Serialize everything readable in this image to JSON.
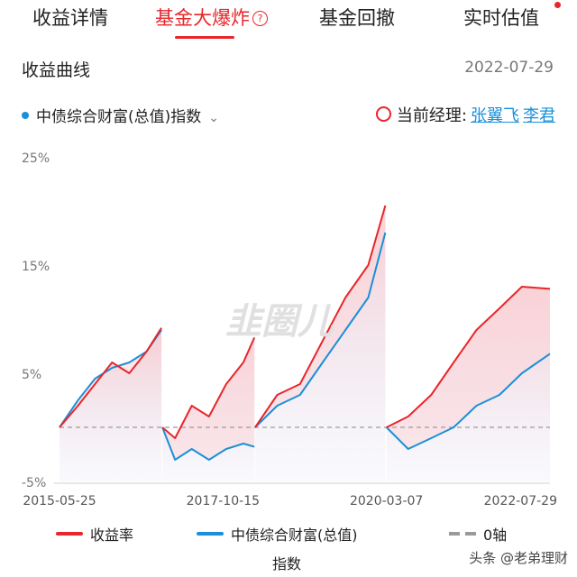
{
  "tabs": [
    {
      "label": "收益详情"
    },
    {
      "label": "基金大爆炸"
    },
    {
      "label": "基金回撤"
    },
    {
      "label": "实时估值"
    }
  ],
  "help_glyph": "?",
  "section_title": "收益曲线",
  "date": "2022-07-29",
  "index_selector": {
    "label": "中债综合财富(总值)指数",
    "icon": "chevron-down-icon"
  },
  "manager": {
    "label": "当前经理:",
    "names": [
      "张翼飞",
      "李君"
    ]
  },
  "watermark_chart": "韭圈儿",
  "legend": {
    "series1": "收益率",
    "series2": "中债综合财富(总值)",
    "series2_suffix": "指数",
    "zero": "0轴"
  },
  "footer_watermark": "头条 @老弟理财",
  "colors": {
    "return": "#e8262b",
    "index": "#1a90d8",
    "zero": "#9a9a9a",
    "accent": "#e8262b"
  },
  "chart_data": {
    "type": "line",
    "y_ticks": [
      "25%",
      "15%",
      "5%",
      "-5%"
    ],
    "ylim": [
      -5,
      25
    ],
    "x_ticks": [
      "2015-05-25",
      "2017-10-15",
      "2020-03-07",
      "2022-07-29"
    ],
    "series": [
      {
        "name": "收益率",
        "segments": [
          {
            "x": [
              "2015-05-25",
              "2015-09-01",
              "2015-12-01",
              "2016-03-01",
              "2016-06-01",
              "2016-09-01",
              "2016-11-20"
            ],
            "y": [
              0,
              2,
              4,
              6,
              5,
              7,
              9.2
            ]
          },
          {
            "x": [
              "2016-11-25",
              "2017-02-01",
              "2017-05-01",
              "2017-08-01",
              "2017-11-01",
              "2018-02-01",
              "2018-04-01"
            ],
            "y": [
              0,
              -1,
              2,
              1,
              4,
              6,
              8.3
            ]
          },
          {
            "x": [
              "2018-04-05",
              "2018-08-01",
              "2018-12-01",
              "2019-04-01",
              "2019-08-01",
              "2019-12-01",
              "2020-03-01"
            ],
            "y": [
              0,
              3,
              4,
              8,
              12,
              15,
              20.5
            ]
          },
          {
            "x": [
              "2020-03-07",
              "2020-07-01",
              "2020-11-01",
              "2021-03-01",
              "2021-07-01",
              "2021-11-01",
              "2022-03-01",
              "2022-07-29"
            ],
            "y": [
              0,
              1,
              3,
              6,
              9,
              11,
              13,
              12.8
            ]
          }
        ]
      },
      {
        "name": "中债综合财富(总值)指数",
        "segments": [
          {
            "x": [
              "2015-05-25",
              "2015-09-01",
              "2015-12-01",
              "2016-03-01",
              "2016-06-01",
              "2016-09-01",
              "2016-11-20"
            ],
            "y": [
              0,
              2.5,
              4.5,
              5.5,
              6,
              7,
              9
            ]
          },
          {
            "x": [
              "2016-11-25",
              "2017-02-01",
              "2017-05-01",
              "2017-08-01",
              "2017-11-01",
              "2018-02-01",
              "2018-04-01"
            ],
            "y": [
              0,
              -3,
              -2,
              -3,
              -2,
              -1.5,
              -1.8
            ]
          },
          {
            "x": [
              "2018-04-05",
              "2018-08-01",
              "2018-12-01",
              "2019-04-01",
              "2019-08-01",
              "2019-12-01",
              "2020-03-01"
            ],
            "y": [
              0,
              2,
              3,
              6,
              9,
              12,
              18
            ]
          },
          {
            "x": [
              "2020-03-07",
              "2020-07-01",
              "2020-11-01",
              "2021-03-01",
              "2021-07-01",
              "2021-11-01",
              "2022-03-01",
              "2022-07-29"
            ],
            "y": [
              0,
              -2,
              -1,
              0,
              2,
              3,
              5,
              6.8
            ]
          }
        ]
      },
      {
        "name": "0轴",
        "style": "dashed",
        "y": 0
      }
    ]
  }
}
